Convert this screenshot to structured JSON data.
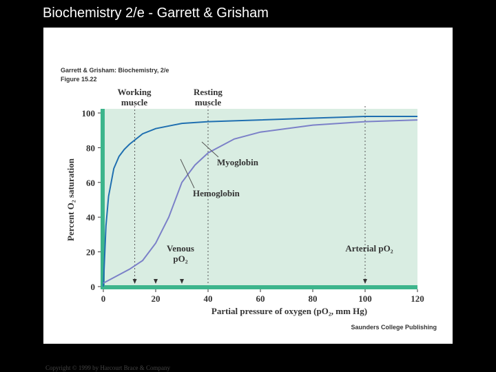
{
  "slide_title": "Biochemistry 2/e - Garrett & Grisham",
  "copyright": "Copyright © 1999 by Harcourt Brace & Company",
  "chart_data": {
    "type": "line",
    "source": "Garrett & Grisham: Biochemistry, 2/e",
    "figure": "Figure 15.22",
    "publisher": "Saunders College Publishing",
    "xlabel": "Partial pressure of oxygen (pO₂, mm Hg)",
    "ylabel": "Percent O₂ saturation",
    "xlim": [
      0,
      120
    ],
    "xticks": [
      0,
      20,
      40,
      60,
      80,
      100,
      120
    ],
    "ylim": [
      0,
      100
    ],
    "yticks": [
      0,
      20,
      40,
      60,
      80,
      100
    ],
    "series": [
      {
        "name": "Myoglobin",
        "color": "#1f6fb0",
        "x": [
          0,
          1,
          2,
          4,
          6,
          8,
          10,
          15,
          20,
          30,
          40,
          60,
          80,
          100,
          120
        ],
        "values": [
          0,
          35,
          52,
          68,
          75,
          79,
          82,
          88,
          91,
          94,
          95,
          96,
          97,
          98,
          98
        ]
      },
      {
        "name": "Hemoglobin",
        "color": "#7b80c8",
        "x": [
          0,
          5,
          10,
          15,
          20,
          25,
          28,
          30,
          35,
          40,
          50,
          60,
          80,
          100,
          120
        ],
        "values": [
          2,
          6,
          10,
          15,
          25,
          40,
          52,
          60,
          70,
          77,
          85,
          89,
          93,
          95,
          96
        ]
      }
    ],
    "annotations": [
      "Working muscle",
      "Resting muscle",
      "Venous pO₂",
      "Arterial pO₂"
    ],
    "dotted_x": [
      12,
      40,
      100
    ],
    "arrows_x": [
      12,
      20,
      30,
      100
    ]
  }
}
